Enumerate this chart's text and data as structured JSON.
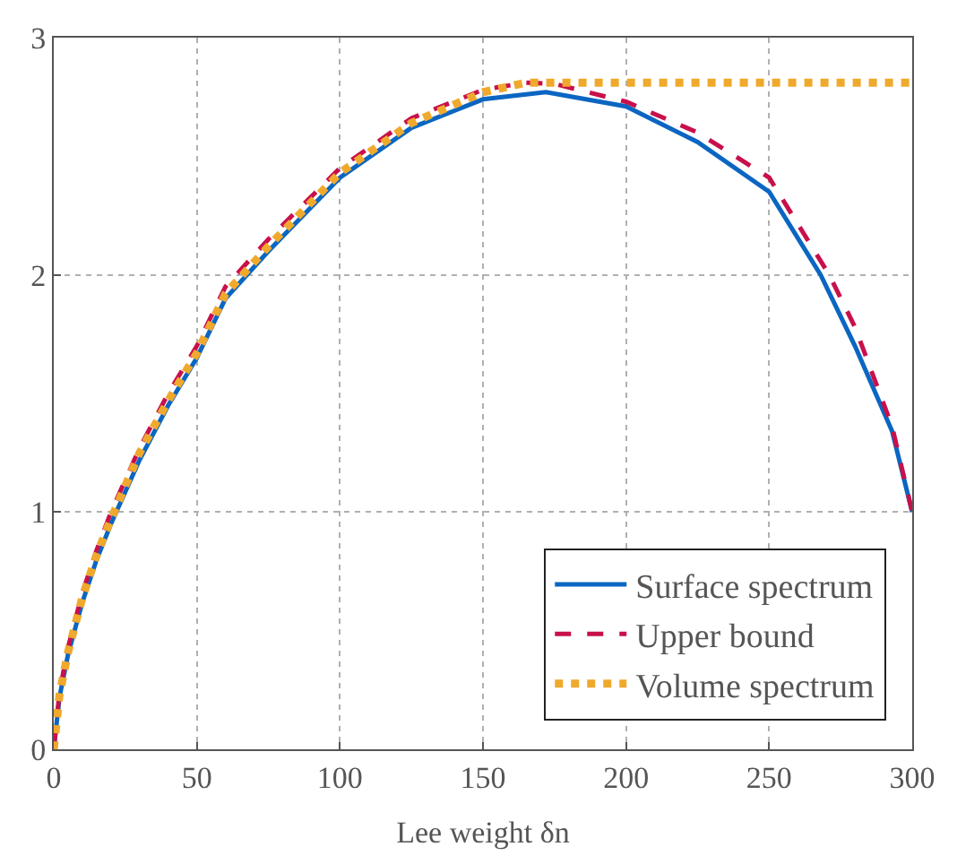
{
  "chart_data": {
    "type": "line",
    "xlabel": "Lee weight δn",
    "xlim": [
      0,
      300
    ],
    "xticks": [
      0,
      50,
      100,
      150,
      200,
      250,
      300
    ],
    "ylim": [
      0,
      3
    ],
    "yticks": [
      0,
      1,
      2,
      3
    ],
    "grid": true,
    "legend": "bottom right",
    "marker": "none",
    "series": [
      {
        "name": "Surface spectrum",
        "color": "#0b66c2",
        "line_style": "solid",
        "x": [
          0,
          2,
          5,
          10,
          15,
          20,
          30,
          40,
          50,
          60,
          75,
          100,
          125,
          150,
          172,
          200,
          225,
          250,
          268,
          280,
          293,
          300
        ],
        "values": [
          0,
          0.22,
          0.4,
          0.62,
          0.8,
          0.95,
          1.22,
          1.45,
          1.65,
          1.9,
          2.1,
          2.41,
          2.62,
          2.74,
          2.77,
          2.71,
          2.56,
          2.35,
          2.0,
          1.7,
          1.34,
          1.0
        ]
      },
      {
        "name": "Upper bound",
        "color": "#c8104a",
        "line_style": "dashed",
        "x": [
          0,
          2,
          5,
          10,
          15,
          20,
          30,
          40,
          50,
          60,
          75,
          100,
          125,
          150,
          165,
          175,
          200,
          225,
          250,
          271,
          280,
          293,
          300
        ],
        "values": [
          0,
          0.24,
          0.43,
          0.66,
          0.84,
          1.0,
          1.27,
          1.5,
          1.7,
          1.95,
          2.15,
          2.45,
          2.66,
          2.78,
          2.81,
          2.805,
          2.73,
          2.6,
          2.41,
          2.0,
          1.78,
          1.36,
          1.0
        ]
      },
      {
        "name": "Volume spectrum",
        "color": "#f0a92c",
        "line_style": "dotted",
        "x": [
          0,
          2,
          5,
          10,
          15,
          20,
          30,
          40,
          50,
          60,
          75,
          100,
          125,
          150,
          165,
          300
        ],
        "values": [
          0,
          0.23,
          0.41,
          0.64,
          0.82,
          0.97,
          1.25,
          1.47,
          1.67,
          1.92,
          2.12,
          2.43,
          2.64,
          2.77,
          2.81,
          2.81
        ]
      }
    ]
  }
}
